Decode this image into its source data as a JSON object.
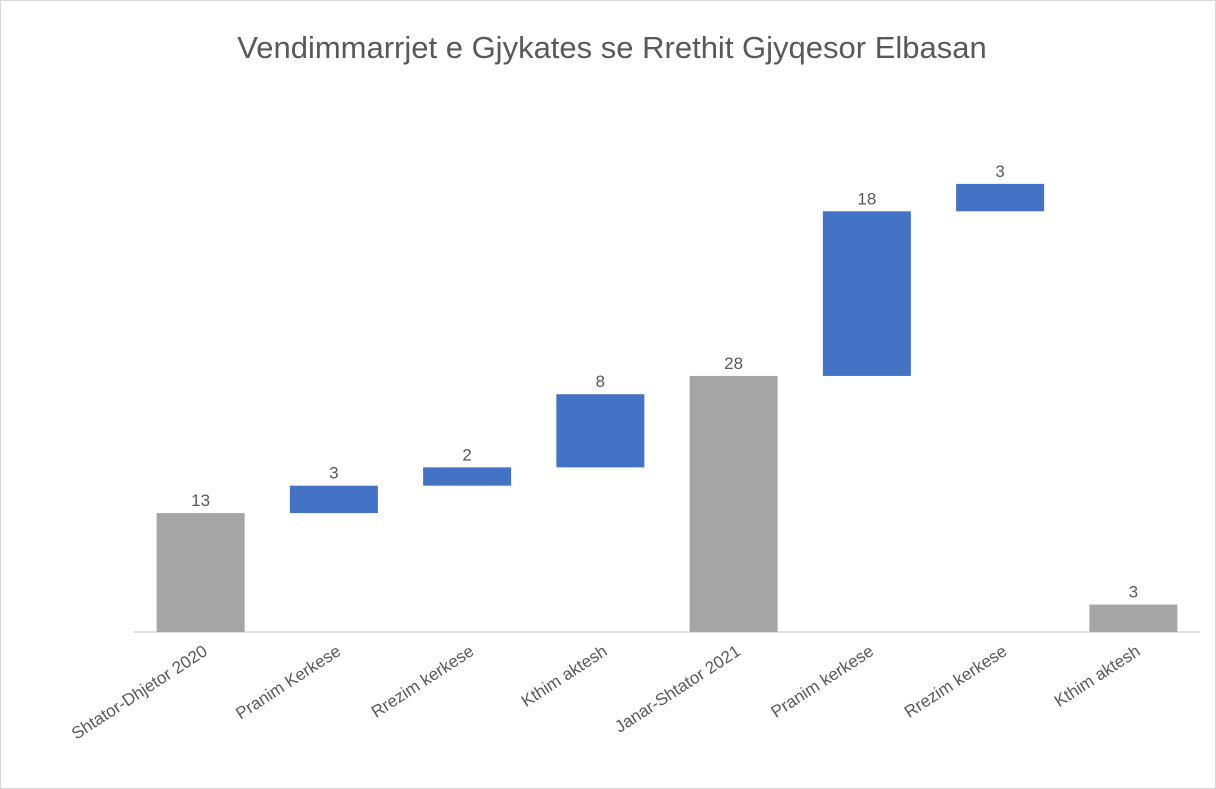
{
  "chart_data": {
    "type": "waterfall",
    "title": "Vendimmarrjet e Gjykates se Rrethit Gjyqesor Elbasan",
    "categories": [
      "Shtator-Dhjetor 2020",
      "Pranim Kerkese",
      "Rrezim kerkese",
      "Kthim aktesh",
      "Janar-Shtator 2021",
      "Pranim kerkese",
      "Rrezim kerkese",
      "Kthim aktesh"
    ],
    "values": [
      13,
      3,
      2,
      8,
      28,
      18,
      3,
      3
    ],
    "kinds": [
      "total",
      "increase",
      "increase",
      "increase",
      "total",
      "increase",
      "increase",
      "total"
    ],
    "colors": {
      "total": "#a5a5a5",
      "increase": "#4472c4"
    },
    "ylim": [
      0,
      55
    ]
  }
}
